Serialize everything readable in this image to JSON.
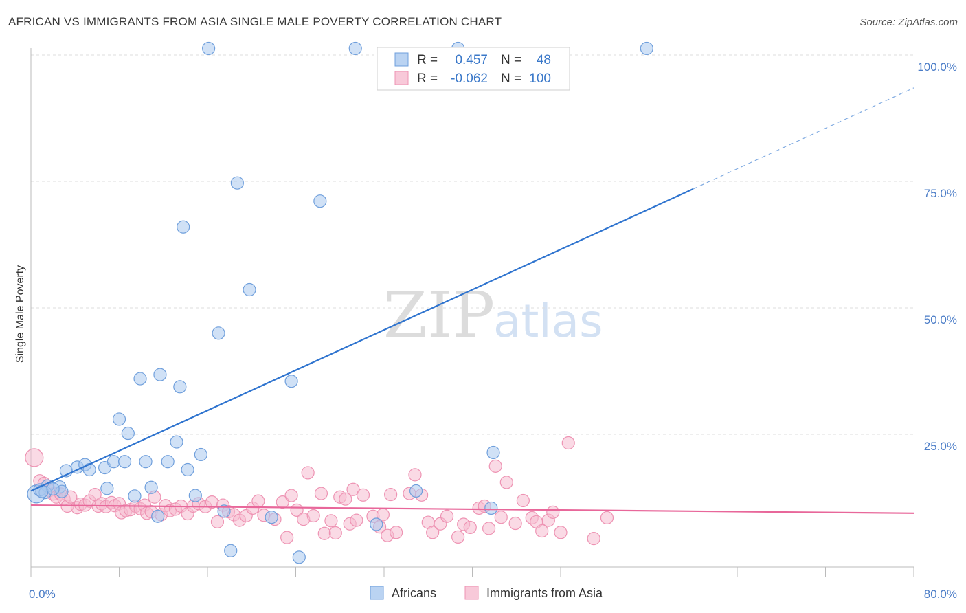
{
  "title": "AFRICAN VS IMMIGRANTS FROM ASIA SINGLE MALE POVERTY CORRELATION CHART",
  "source": "Source: ZipAtlas.com",
  "watermark": {
    "zip": "ZIP",
    "atlas": "atlas"
  },
  "colors": {
    "africans_fill": "#a9c8ef",
    "africans_stroke": "#6f9fdc",
    "africans_line": "#2f74cf",
    "asia_fill": "#f6bcd0",
    "asia_stroke": "#ee93b3",
    "asia_line": "#e8679a",
    "grid": "#dddddd",
    "axis": "#bbbbbb",
    "tick_text": "#4a7cc7"
  },
  "legend": {
    "rows": [
      {
        "r_label": "R =",
        "r_value": "0.457",
        "n_label": "N =",
        "n_value": "48"
      },
      {
        "r_label": "R =",
        "r_value": "-0.062",
        "n_label": "N =",
        "n_value": "100"
      }
    ]
  },
  "chart_data": {
    "type": "scatter",
    "title": "AFRICAN VS IMMIGRANTS FROM ASIA SINGLE MALE POVERTY CORRELATION CHART",
    "xlabel": "",
    "ylabel": "Single Male Poverty",
    "xlim": [
      0,
      80
    ],
    "ylim": [
      0,
      102
    ],
    "x_tick_labels": [
      "0.0%",
      "80.0%"
    ],
    "y_tick_labels": [
      "100.0%",
      "75.0%",
      "50.0%",
      "25.0%"
    ],
    "y_ticks": [
      100,
      75,
      50,
      25
    ],
    "grid": true,
    "legend_position": "bottom-center",
    "series": [
      {
        "name": "Africans",
        "r": 0.457,
        "n": 48,
        "trend": {
          "x": [
            0,
            60
          ],
          "y": [
            13.8,
            73.5
          ],
          "dashed_to": [
            80,
            93.5
          ]
        },
        "points": [
          [
            0.5,
            13.2
          ],
          [
            0.8,
            14.0
          ],
          [
            1.5,
            14.8
          ],
          [
            1.3,
            13.5
          ],
          [
            2.6,
            14.6
          ],
          [
            2.8,
            13.7
          ],
          [
            3.2,
            17.8
          ],
          [
            4.2,
            18.5
          ],
          [
            4.9,
            19.0
          ],
          [
            5.3,
            18.0
          ],
          [
            6.7,
            18.4
          ],
          [
            6.9,
            14.3
          ],
          [
            7.5,
            19.6
          ],
          [
            8.5,
            19.6
          ],
          [
            8.0,
            28.0
          ],
          [
            8.8,
            25.2
          ],
          [
            9.4,
            12.8
          ],
          [
            9.9,
            36.0
          ],
          [
            10.4,
            19.6
          ],
          [
            10.9,
            14.5
          ],
          [
            11.5,
            8.8
          ],
          [
            11.7,
            36.8
          ],
          [
            12.4,
            19.6
          ],
          [
            13.2,
            23.5
          ],
          [
            13.5,
            34.4
          ],
          [
            13.8,
            66.0
          ],
          [
            14.2,
            18.0
          ],
          [
            14.9,
            12.9
          ],
          [
            15.4,
            21.0
          ],
          [
            16.1,
            101.3
          ],
          [
            17.0,
            45.0
          ],
          [
            17.5,
            9.8
          ],
          [
            18.1,
            2.0
          ],
          [
            18.7,
            74.7
          ],
          [
            19.8,
            53.6
          ],
          [
            21.8,
            8.6
          ],
          [
            23.6,
            35.5
          ],
          [
            24.3,
            0.7
          ],
          [
            26.2,
            71.1
          ],
          [
            29.4,
            101.3
          ],
          [
            31.3,
            7.2
          ],
          [
            34.9,
            13.8
          ],
          [
            38.7,
            101.3
          ],
          [
            41.7,
            10.4
          ],
          [
            41.9,
            21.4
          ],
          [
            55.8,
            101.3
          ],
          [
            1.0,
            13.7
          ],
          [
            2.0,
            14.2
          ]
        ]
      },
      {
        "name": "Immigrants from Asia",
        "r": -0.062,
        "n": 100,
        "trend": {
          "x": [
            0,
            80
          ],
          "y": [
            11.0,
            9.4
          ]
        },
        "points": [
          [
            0.3,
            20.4
          ],
          [
            0.8,
            15.8
          ],
          [
            1.2,
            15.3
          ],
          [
            1.7,
            13.9
          ],
          [
            2.0,
            13.2
          ],
          [
            2.3,
            12.6
          ],
          [
            2.7,
            13.2
          ],
          [
            3.0,
            12.2
          ],
          [
            3.3,
            10.8
          ],
          [
            3.6,
            12.6
          ],
          [
            4.2,
            10.5
          ],
          [
            4.5,
            11.2
          ],
          [
            4.9,
            11.0
          ],
          [
            5.3,
            11.8
          ],
          [
            5.8,
            13.1
          ],
          [
            6.1,
            10.8
          ],
          [
            6.4,
            11.3
          ],
          [
            6.8,
            10.7
          ],
          [
            7.3,
            11.5
          ],
          [
            7.6,
            10.9
          ],
          [
            8.0,
            11.3
          ],
          [
            8.2,
            9.5
          ],
          [
            8.6,
            9.9
          ],
          [
            9.0,
            10.1
          ],
          [
            9.5,
            10.8
          ],
          [
            9.9,
            10.3
          ],
          [
            10.3,
            11.0
          ],
          [
            10.5,
            9.4
          ],
          [
            10.9,
            9.7
          ],
          [
            11.2,
            12.6
          ],
          [
            11.8,
            9.1
          ],
          [
            12.2,
            10.9
          ],
          [
            12.6,
            9.9
          ],
          [
            13.1,
            10.2
          ],
          [
            13.6,
            10.8
          ],
          [
            14.2,
            9.3
          ],
          [
            14.7,
            10.8
          ],
          [
            15.2,
            11.3
          ],
          [
            15.8,
            10.7
          ],
          [
            16.4,
            11.6
          ],
          [
            16.9,
            7.7
          ],
          [
            17.4,
            11.0
          ],
          [
            17.9,
            9.7
          ],
          [
            18.4,
            9.1
          ],
          [
            18.9,
            8.0
          ],
          [
            19.5,
            8.9
          ],
          [
            20.1,
            10.4
          ],
          [
            20.6,
            11.8
          ],
          [
            21.1,
            9.0
          ],
          [
            22.1,
            8.2
          ],
          [
            22.8,
            11.6
          ],
          [
            23.2,
            4.6
          ],
          [
            23.6,
            12.9
          ],
          [
            24.1,
            10.0
          ],
          [
            24.7,
            8.2
          ],
          [
            25.1,
            17.4
          ],
          [
            25.6,
            8.9
          ],
          [
            26.3,
            13.3
          ],
          [
            26.6,
            5.4
          ],
          [
            27.2,
            7.9
          ],
          [
            27.6,
            5.5
          ],
          [
            28.0,
            12.6
          ],
          [
            28.5,
            12.2
          ],
          [
            28.9,
            7.3
          ],
          [
            29.2,
            14.1
          ],
          [
            29.5,
            8.0
          ],
          [
            30.1,
            13.0
          ],
          [
            31.0,
            8.8
          ],
          [
            31.6,
            6.7
          ],
          [
            31.9,
            9.1
          ],
          [
            32.3,
            5.0
          ],
          [
            32.6,
            13.1
          ],
          [
            33.1,
            5.6
          ],
          [
            34.3,
            13.3
          ],
          [
            34.8,
            17.0
          ],
          [
            35.4,
            13.0
          ],
          [
            36.0,
            7.6
          ],
          [
            36.4,
            5.6
          ],
          [
            37.1,
            7.3
          ],
          [
            37.7,
            8.8
          ],
          [
            38.7,
            4.7
          ],
          [
            39.2,
            7.2
          ],
          [
            39.8,
            6.6
          ],
          [
            40.6,
            10.4
          ],
          [
            41.1,
            10.8
          ],
          [
            41.5,
            6.4
          ],
          [
            42.1,
            18.7
          ],
          [
            42.6,
            8.6
          ],
          [
            43.1,
            15.5
          ],
          [
            43.9,
            7.4
          ],
          [
            44.6,
            11.9
          ],
          [
            45.4,
            8.5
          ],
          [
            45.8,
            7.7
          ],
          [
            46.3,
            5.9
          ],
          [
            46.9,
            8.0
          ],
          [
            47.3,
            9.6
          ],
          [
            48.0,
            5.6
          ],
          [
            48.7,
            23.3
          ],
          [
            51.0,
            4.4
          ],
          [
            52.2,
            8.5
          ]
        ]
      }
    ]
  },
  "bottom_legend": [
    "Africans",
    "Immigrants from Asia"
  ]
}
